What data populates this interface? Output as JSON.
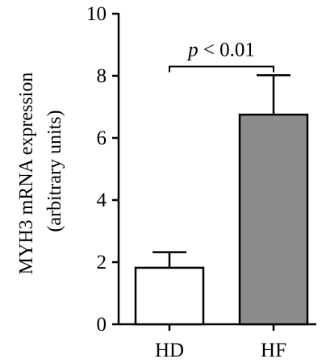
{
  "chart_data": {
    "type": "bar",
    "categories": [
      "HD",
      "HF"
    ],
    "values": [
      1.82,
      6.75
    ],
    "error_upper": [
      2.32,
      8.02
    ],
    "bar_colors": [
      "#ffffff",
      "#8c8c8c"
    ],
    "ylim": [
      0,
      10
    ],
    "yticks": [
      "0",
      "2",
      "4",
      "6",
      "8",
      "10"
    ],
    "ylabel_line1": "MYH3 mRNA expression",
    "ylabel_line2": "(arbitrary units)",
    "xlabel": "",
    "title": "",
    "annotation": {
      "p_symbol": "p",
      "text": " < 0.01",
      "bracket_y": 8.3
    },
    "grid": false,
    "legend": "none"
  }
}
